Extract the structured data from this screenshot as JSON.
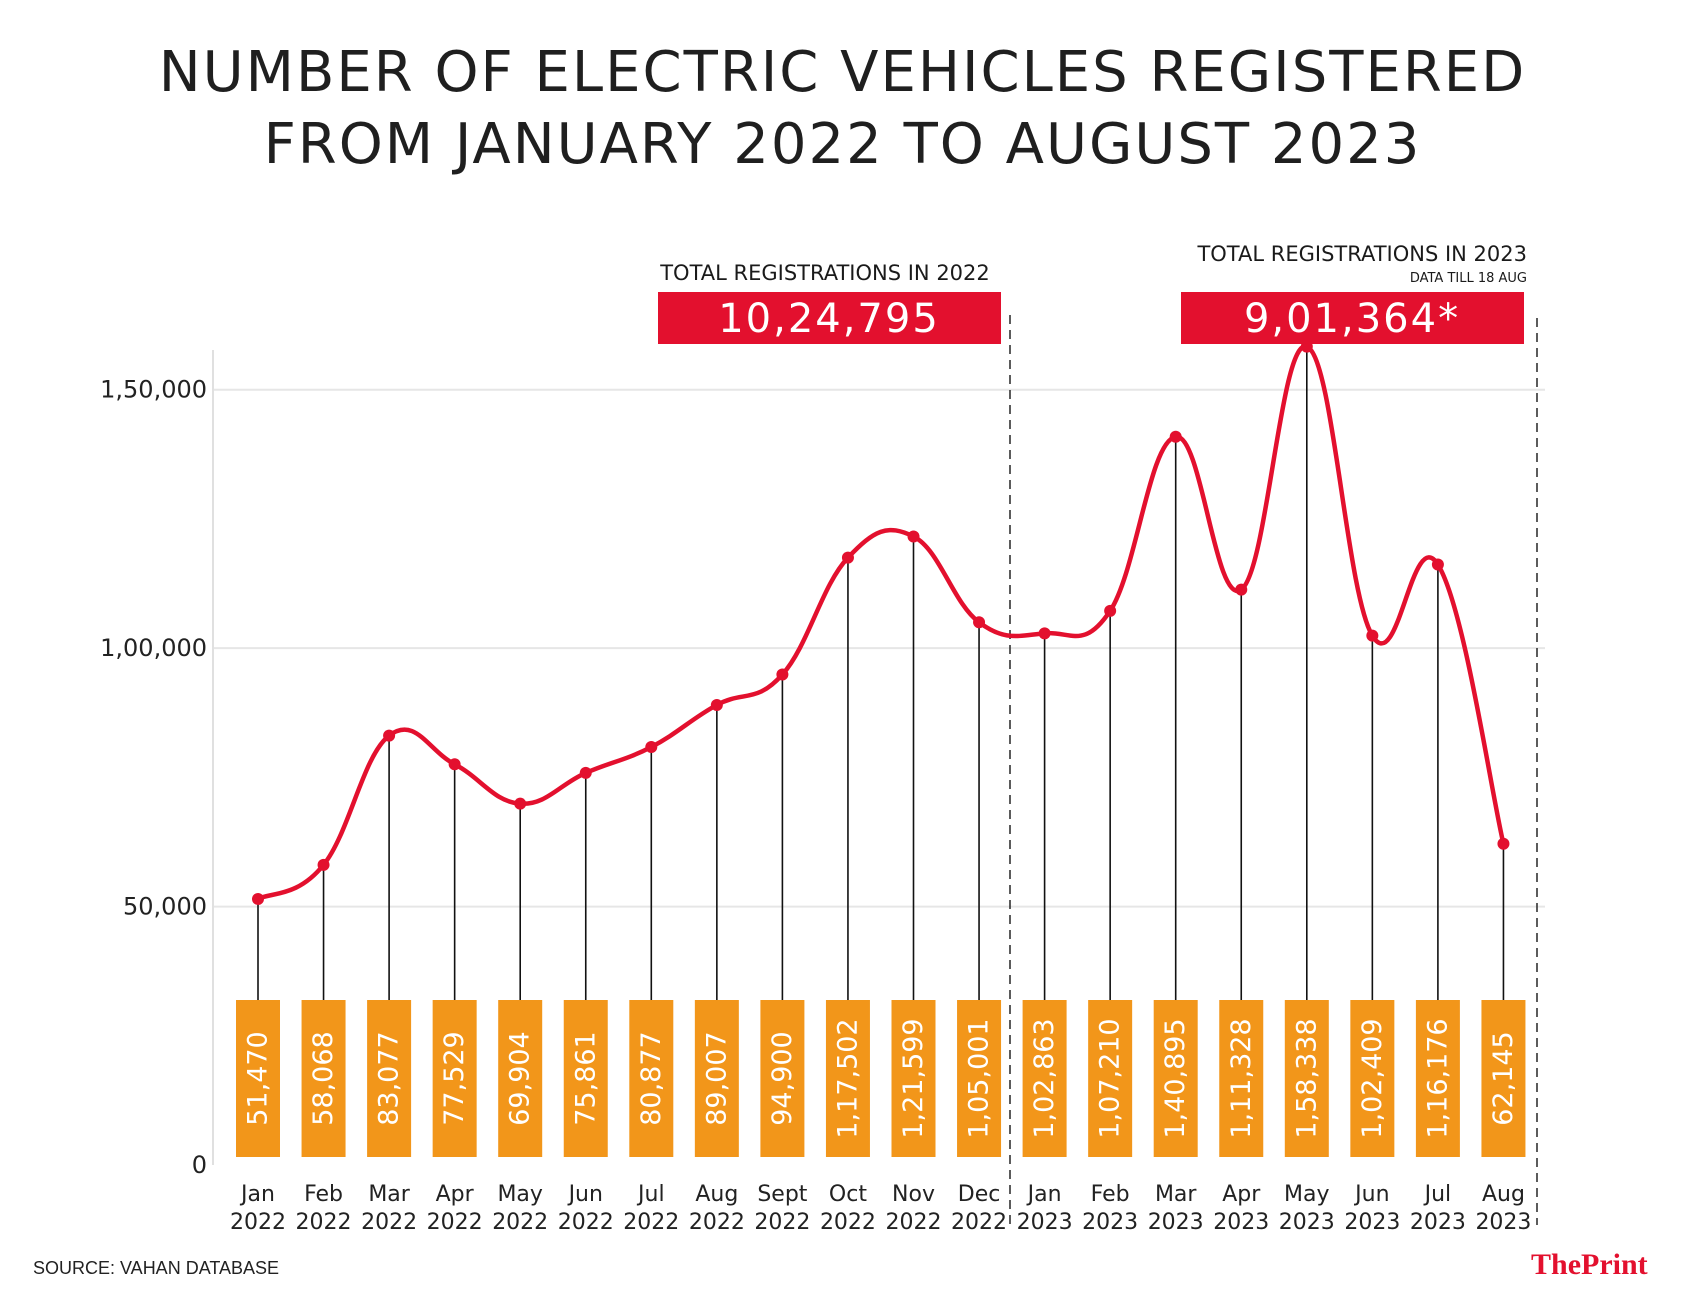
{
  "title_line1": "NUMBER OF ELECTRIC VEHICLES REGISTERED",
  "title_line2": "FROM JANUARY 2022 TO AUGUST 2023",
  "totals": {
    "y2022": {
      "label": "TOTAL REGISTRATIONS IN 2022",
      "value": "10,24,795"
    },
    "y2023": {
      "label": "TOTAL REGISTRATIONS IN 2023",
      "note": "DATA TILL 18 AUG",
      "value": "9,01,364*"
    }
  },
  "source": "SOURCE: VAHAN DATABASE",
  "brand": {
    "the": "The",
    "print": "Print"
  },
  "colors": {
    "line": "#e3102e",
    "label_box": "#f2961a",
    "total_box": "#e3102e",
    "grid": "#e6e6e6"
  },
  "chart_data": {
    "type": "line",
    "title": "NUMBER OF ELECTRIC VEHICLES REGISTERED FROM JANUARY 2022 TO AUGUST 2023",
    "xlabel": "",
    "ylabel": "",
    "ylim": [
      0,
      160000
    ],
    "yticks": [
      0,
      50000,
      100000,
      150000
    ],
    "ytick_labels": [
      "0",
      "50,000",
      "1,00,000",
      "1,50,000"
    ],
    "grid": true,
    "categories": [
      {
        "month": "Jan",
        "year": "2022"
      },
      {
        "month": "Feb",
        "year": "2022"
      },
      {
        "month": "Mar",
        "year": "2022"
      },
      {
        "month": "Apr",
        "year": "2022"
      },
      {
        "month": "May",
        "year": "2022"
      },
      {
        "month": "Jun",
        "year": "2022"
      },
      {
        "month": "Jul",
        "year": "2022"
      },
      {
        "month": "Aug",
        "year": "2022"
      },
      {
        "month": "Sept",
        "year": "2022"
      },
      {
        "month": "Oct",
        "year": "2022"
      },
      {
        "month": "Nov",
        "year": "2022"
      },
      {
        "month": "Dec",
        "year": "2022"
      },
      {
        "month": "Jan",
        "year": "2023"
      },
      {
        "month": "Feb",
        "year": "2023"
      },
      {
        "month": "Mar",
        "year": "2023"
      },
      {
        "month": "Apr",
        "year": "2023"
      },
      {
        "month": "May",
        "year": "2023"
      },
      {
        "month": "Jun",
        "year": "2023"
      },
      {
        "month": "Jul",
        "year": "2023"
      },
      {
        "month": "Aug",
        "year": "2023"
      }
    ],
    "values": [
      51470,
      58068,
      83077,
      77529,
      69904,
      75861,
      80877,
      89007,
      94900,
      117502,
      121599,
      105001,
      102863,
      107210,
      140895,
      111328,
      158338,
      102409,
      116176,
      62145
    ],
    "value_labels": [
      "51,470",
      "58,068",
      "83,077",
      "77,529",
      "69,904",
      "75,861",
      "80,877",
      "89,007",
      "94,900",
      "1,17,502",
      "1,21,599",
      "1,05,001",
      "1,02,863",
      "1,07,210",
      "1,40,895",
      "1,11,328",
      "1,58,338",
      "1,02,409",
      "1,16,176",
      "62,145"
    ]
  }
}
